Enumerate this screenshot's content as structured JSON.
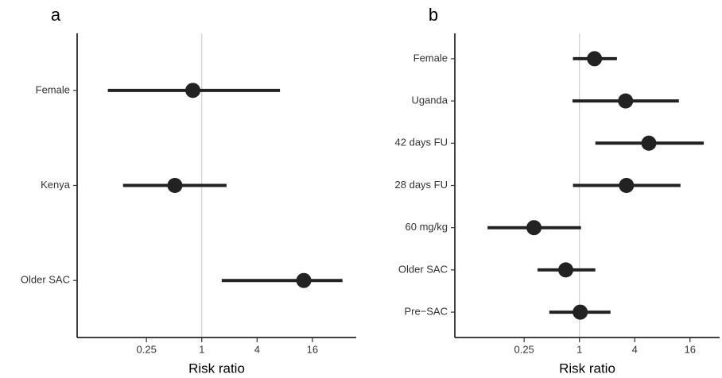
{
  "chart_data": [
    {
      "type": "forest",
      "title": "a",
      "x_label": "Risk ratio",
      "log_scale": 2,
      "categories": [
        "Female",
        "Kenya",
        "Older SAC"
      ],
      "values": [
        0.8,
        0.51,
        12.9
      ],
      "ci_lower": [
        0.095,
        0.139,
        1.65
      ],
      "ci_upper": [
        7.1,
        1.86,
        34
      ],
      "reference_line": 1,
      "xlim": [
        0.044,
        48
      ],
      "xticks": [
        0.25,
        1,
        4,
        16
      ],
      "color": "#222222"
    },
    {
      "type": "forest",
      "title": "b",
      "x_label": "Risk ratio",
      "log_scale": 2,
      "categories": [
        "Female",
        "Uganda",
        "42 days FU",
        "28 days FU",
        "60 mg/kg",
        "Older SAC",
        "Pre−SAC"
      ],
      "values": [
        1.46,
        3.18,
        5.7,
        3.25,
        0.32,
        0.71,
        1.02
      ],
      "ci_lower": [
        0.85,
        0.84,
        1.49,
        0.85,
        0.1,
        0.35,
        0.47
      ],
      "ci_upper": [
        2.56,
        12.1,
        22.6,
        12.6,
        1.04,
        1.49,
        2.18
      ],
      "reference_line": 1,
      "xlim": [
        0.044,
        33.6
      ],
      "xticks": [
        0.25,
        1,
        4,
        16
      ],
      "color": "#222222"
    }
  ]
}
